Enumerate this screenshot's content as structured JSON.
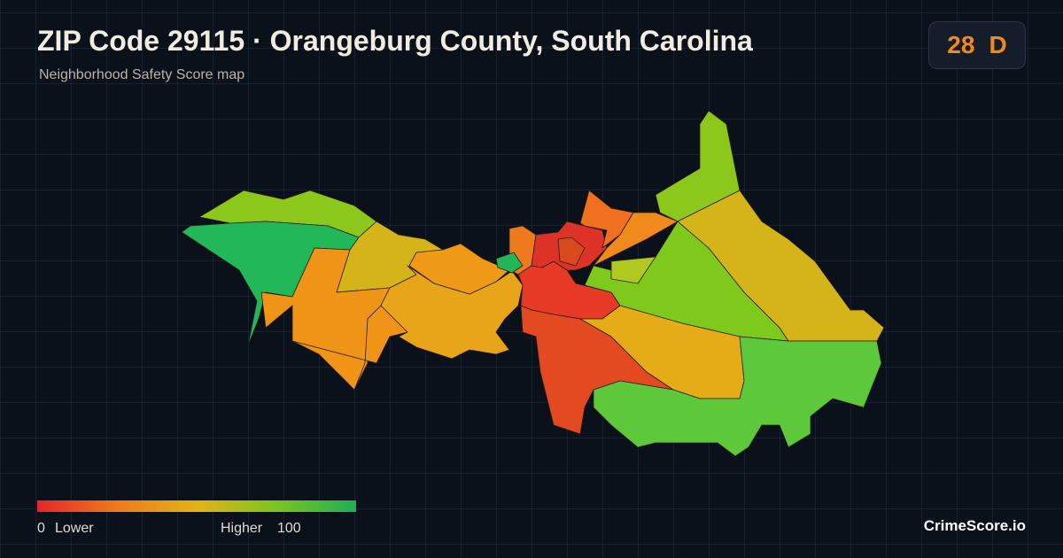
{
  "header": {
    "title": "ZIP Code 29115 · Orangeburg County, South Carolina",
    "subtitle": "Neighborhood Safety Score map"
  },
  "score": {
    "value": 28,
    "grade": "D"
  },
  "legend": {
    "min": 0,
    "min_label": "Lower",
    "max_label": "Higher",
    "max": 100
  },
  "brand": "CrimeScore.io"
}
